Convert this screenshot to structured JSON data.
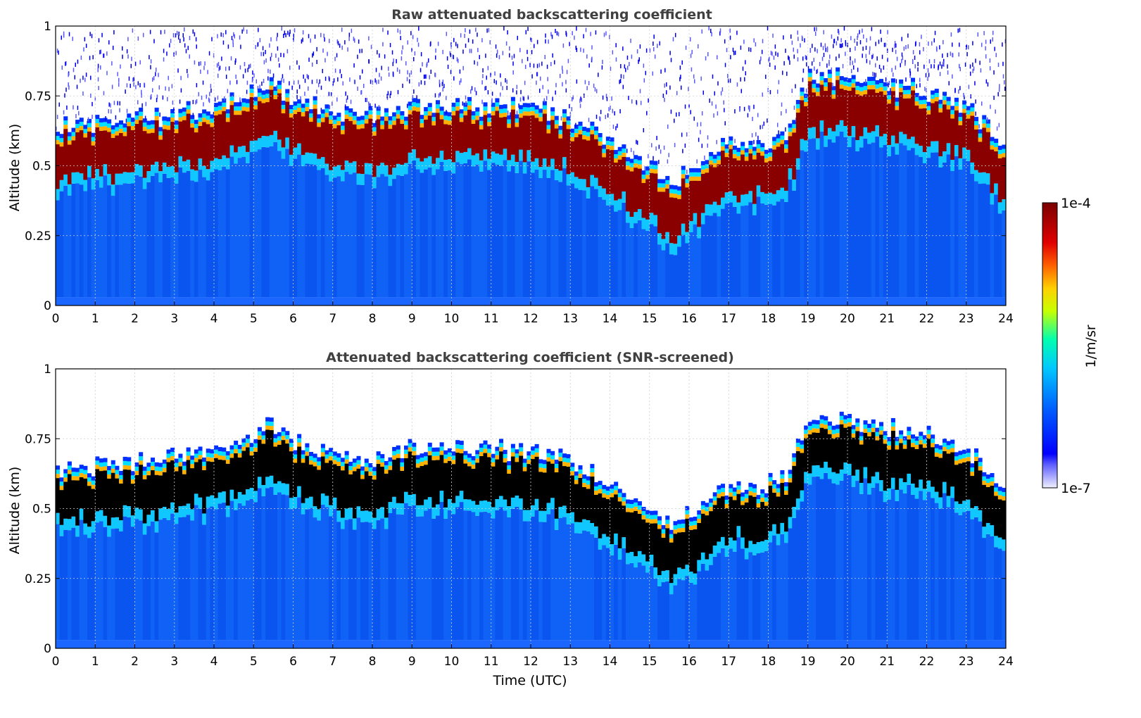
{
  "chart_data": [
    {
      "type": "heatmap",
      "title": "Raw attenuated backscattering coefficient",
      "xlabel": "",
      "ylabel": "Altitude (km)",
      "xlim": [
        0,
        24
      ],
      "ylim": [
        0,
        1
      ],
      "x_ticks": [
        "0",
        "1",
        "2",
        "3",
        "4",
        "5",
        "6",
        "7",
        "8",
        "9",
        "10",
        "11",
        "12",
        "13",
        "14",
        "15",
        "16",
        "17",
        "18",
        "19",
        "20",
        "21",
        "22",
        "23",
        "24"
      ],
      "y_ticks": [
        "0",
        "0.25",
        "0.5",
        "0.75",
        "1"
      ],
      "grid": true,
      "layer_center_km": {
        "time_utc": [
          0,
          1,
          2,
          3,
          4,
          5,
          5.5,
          6,
          7,
          8,
          9,
          10,
          11,
          12,
          13,
          14,
          15,
          15.5,
          16,
          17,
          18,
          18.5,
          19,
          20,
          21,
          22,
          23,
          24
        ],
        "altitude_km": [
          0.52,
          0.54,
          0.55,
          0.57,
          0.59,
          0.65,
          0.68,
          0.63,
          0.58,
          0.56,
          0.6,
          0.61,
          0.6,
          0.59,
          0.56,
          0.47,
          0.39,
          0.32,
          0.36,
          0.47,
          0.47,
          0.5,
          0.7,
          0.7,
          0.67,
          0.65,
          0.6,
          0.45
        ]
      },
      "noise_screened": false
    },
    {
      "type": "heatmap",
      "title": "Attenuated backscattering coefficient (SNR-screened)",
      "xlabel": "Time (UTC)",
      "ylabel": "Altitude (km)",
      "xlim": [
        0,
        24
      ],
      "ylim": [
        0,
        1
      ],
      "x_ticks": [
        "0",
        "1",
        "2",
        "3",
        "4",
        "5",
        "6",
        "7",
        "8",
        "9",
        "10",
        "11",
        "12",
        "13",
        "14",
        "15",
        "16",
        "17",
        "18",
        "19",
        "20",
        "21",
        "22",
        "23",
        "24"
      ],
      "y_ticks": [
        "0",
        "0.25",
        "0.5",
        "0.75",
        "1"
      ],
      "grid": true,
      "layer_center_km": {
        "time_utc": [
          0,
          1,
          2,
          3,
          4,
          5,
          5.5,
          6,
          7,
          8,
          9,
          10,
          11,
          12,
          13,
          14,
          15,
          15.5,
          16,
          17,
          18,
          18.5,
          19,
          20,
          21,
          22,
          23,
          24
        ],
        "altitude_km": [
          0.52,
          0.54,
          0.55,
          0.57,
          0.59,
          0.65,
          0.68,
          0.63,
          0.58,
          0.56,
          0.6,
          0.61,
          0.6,
          0.59,
          0.56,
          0.47,
          0.39,
          0.32,
          0.36,
          0.47,
          0.47,
          0.5,
          0.7,
          0.7,
          0.67,
          0.65,
          0.6,
          0.45
        ]
      },
      "noise_screened": true
    }
  ],
  "colorbar": {
    "label": "1/m/sr",
    "max_label": "1e-4",
    "min_label": "1e-7",
    "scale": "log",
    "colors": [
      "#f0f0ff",
      "#0000ff",
      "#00aaff",
      "#00ffcc",
      "#ffff00",
      "#ff6600",
      "#cc0000",
      "#7a0000"
    ]
  }
}
